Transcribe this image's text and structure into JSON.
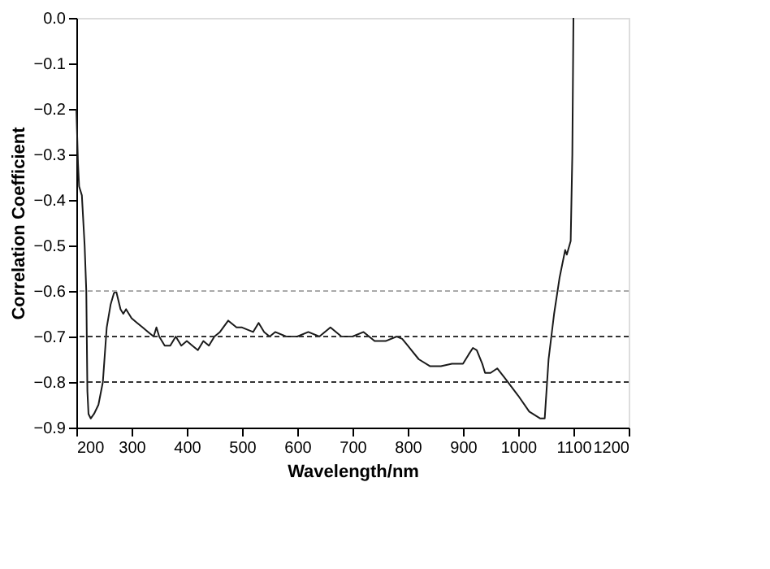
{
  "chart_data": {
    "type": "line",
    "xlabel": "Wavelength/nm",
    "ylabel": "Correlation Coefficient",
    "xlim": [
      200,
      1200
    ],
    "xticks": [
      200,
      300,
      400,
      500,
      600,
      700,
      800,
      900,
      1000,
      1100,
      1200
    ],
    "ylim": [
      -0.9,
      0
    ],
    "yticks": [
      {
        "value": 0,
        "label": "0.0"
      },
      -0.1,
      -0.2,
      -0.3,
      -0.4,
      -0.5,
      -0.6,
      -0.7,
      -0.8,
      -0.9
    ],
    "grid": false,
    "marker": "none",
    "line_style": "solid",
    "x": [
      200,
      203,
      205,
      210,
      215,
      218,
      220,
      222,
      226,
      232,
      240,
      248,
      255,
      262,
      268,
      272,
      280,
      285,
      290,
      300,
      310,
      320,
      330,
      340,
      345,
      350,
      360,
      370,
      380,
      390,
      400,
      410,
      420,
      430,
      440,
      450,
      460,
      475,
      490,
      500,
      520,
      530,
      540,
      550,
      560,
      580,
      600,
      620,
      640,
      660,
      680,
      700,
      720,
      740,
      760,
      780,
      790,
      800,
      820,
      840,
      860,
      880,
      900,
      910,
      918,
      925,
      935,
      940,
      950,
      962,
      975,
      1000,
      1020,
      1040,
      1048,
      1055,
      1065,
      1075,
      1085,
      1088,
      1095,
      1098,
      1100
    ],
    "series": [
      {
        "color": "#1a1a1a",
        "values": [
          -0.2,
          -0.32,
          -0.37,
          -0.39,
          -0.5,
          -0.6,
          -0.82,
          -0.87,
          -0.88,
          -0.87,
          -0.85,
          -0.8,
          -0.68,
          -0.63,
          -0.605,
          -0.6,
          -0.64,
          -0.65,
          -0.64,
          -0.66,
          -0.67,
          -0.68,
          -0.69,
          -0.7,
          -0.68,
          -0.7,
          -0.72,
          -0.72,
          -0.7,
          -0.72,
          -0.71,
          -0.72,
          -0.73,
          -0.71,
          -0.72,
          -0.7,
          -0.69,
          -0.665,
          -0.68,
          -0.68,
          -0.69,
          -0.67,
          -0.69,
          -0.7,
          -0.69,
          -0.7,
          -0.7,
          -0.69,
          -0.7,
          -0.68,
          -0.7,
          -0.7,
          -0.69,
          -0.71,
          -0.71,
          -0.7,
          -0.705,
          -0.72,
          -0.75,
          -0.765,
          -0.765,
          -0.76,
          -0.76,
          -0.74,
          -0.725,
          -0.73,
          -0.76,
          -0.78,
          -0.78,
          -0.77,
          -0.79,
          -0.83,
          -0.865,
          -0.88,
          -0.88,
          -0.75,
          -0.65,
          -0.57,
          -0.51,
          -0.52,
          -0.49,
          -0.3,
          0
        ]
      }
    ],
    "ref_lines": [
      {
        "axis": "y",
        "value": -0.6,
        "color": "#aaaaaa",
        "line_style": "dashed"
      },
      {
        "axis": "y",
        "value": -0.7,
        "color": "#333333",
        "line_style": "dashed"
      },
      {
        "axis": "y",
        "value": -0.8,
        "color": "#333333",
        "line_style": "dashed"
      }
    ]
  }
}
